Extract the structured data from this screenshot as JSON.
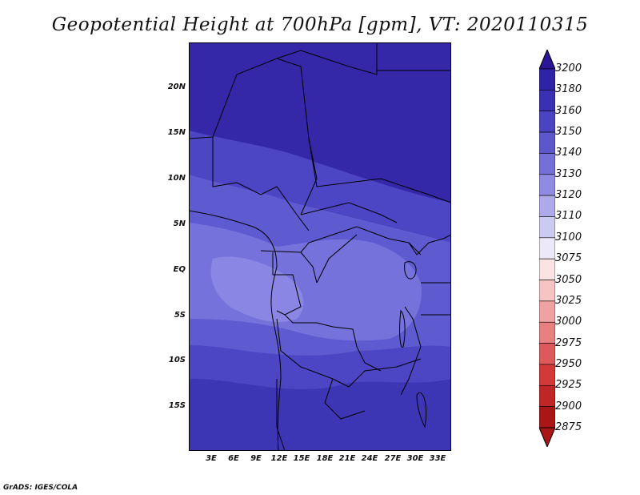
{
  "title": "Geopotential Height at 700hPa [gpm], VT: 2020110315",
  "credit": "GrADS: IGES/COLA",
  "lat_ticks": [
    "20N",
    "15N",
    "10N",
    "5N",
    "EQ",
    "5S",
    "10S",
    "15S"
  ],
  "lon_ticks": [
    "3E",
    "6E",
    "9E",
    "12E",
    "15E",
    "18E",
    "21E",
    "24E",
    "27E",
    "30E",
    "33E"
  ],
  "colorbar": {
    "levels": [
      "3200",
      "3180",
      "3160",
      "3150",
      "3140",
      "3130",
      "3120",
      "3110",
      "3100",
      "3075",
      "3050",
      "3025",
      "3000",
      "2975",
      "2950",
      "2925",
      "2900",
      "2875"
    ],
    "colors": [
      "#2a1696",
      "#2e22a6",
      "#3a30b4",
      "#4a44c2",
      "#5c58cc",
      "#7470d8",
      "#8f8be2",
      "#aeaaea",
      "#cdcaf2",
      "#ece8f8",
      "#fbe3e3",
      "#f7c4c4",
      "#f0a2a2",
      "#e88080",
      "#de5a5a",
      "#d23a3a",
      "#c02626",
      "#a81616"
    ]
  },
  "field_colors": {
    "3180": "#3528a8",
    "3160": "#3d36b4",
    "3150": "#4c46c4",
    "3140": "#5e5ad0",
    "3130": "#7672dc",
    "3120": "#8a86e4"
  }
}
